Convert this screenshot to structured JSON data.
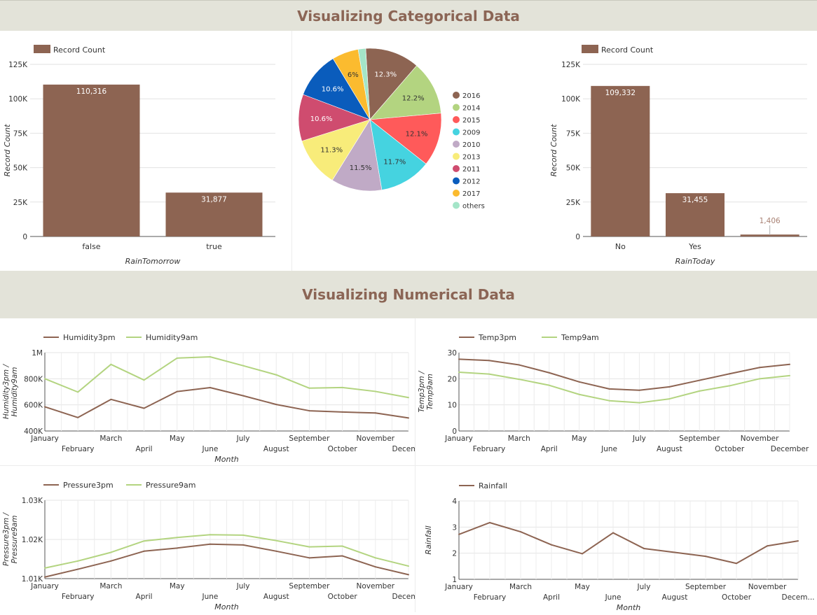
{
  "sections": {
    "categorical_title": "Visualizing Categorical Data",
    "numerical_title": "Visualizing Numerical Data"
  },
  "colors": {
    "brown": "#8d6452",
    "green": "#b3d480",
    "banner_bg": "#e3e3d9",
    "title": "#8b6555"
  },
  "chart_data": [
    {
      "id": "rain_tomorrow",
      "type": "bar",
      "legend": [
        "Record Count"
      ],
      "categories": [
        "false",
        "true"
      ],
      "values": [
        110316,
        31877
      ],
      "value_labels": [
        "110,316",
        "31,877"
      ],
      "xlabel": "RainTomorrow",
      "ylabel": "Record Count",
      "ylim": [
        0,
        125000
      ],
      "y_ticks": [
        0,
        25000,
        50000,
        75000,
        100000,
        125000
      ],
      "y_tick_labels": [
        "0",
        "25K",
        "50K",
        "75K",
        "100K",
        "125K"
      ],
      "grid": true,
      "legend_position": "top-left"
    },
    {
      "id": "year_pie",
      "type": "pie",
      "labels": [
        "2016",
        "2014",
        "2015",
        "2009",
        "2010",
        "2013",
        "2011",
        "2012",
        "2017",
        "others"
      ],
      "values": [
        12.3,
        12.2,
        12.1,
        11.7,
        11.5,
        11.3,
        10.6,
        10.6,
        6.0,
        1.7
      ],
      "slice_labels": [
        "12.3%",
        "12.2%",
        "12.1%",
        "11.7%",
        "11.5%",
        "11.3%",
        "10.6%",
        "10.6%",
        "6%",
        ""
      ],
      "colors": [
        "#8d6452",
        "#b3d480",
        "#ff5a5a",
        "#45d3e0",
        "#c0aac6",
        "#f8ec7a",
        "#cf4c6f",
        "#0a5cbc",
        "#fbbb2f",
        "#a4e5c8"
      ],
      "legend_position": "right"
    },
    {
      "id": "rain_today",
      "type": "bar",
      "legend": [
        "Record Count"
      ],
      "categories": [
        "No",
        "Yes",
        ""
      ],
      "values": [
        109332,
        31455,
        1406
      ],
      "value_labels": [
        "109,332",
        "31,455",
        "1,406"
      ],
      "xlabel": "RainToday",
      "ylabel": "Record Count",
      "ylim": [
        0,
        125000
      ],
      "y_ticks": [
        0,
        25000,
        50000,
        75000,
        100000,
        125000
      ],
      "y_tick_labels": [
        "0",
        "25K",
        "50K",
        "75K",
        "100K",
        "125K"
      ],
      "grid": true,
      "legend_position": "top-left"
    },
    {
      "id": "humidity",
      "type": "line",
      "x": [
        "January",
        "February",
        "March",
        "April",
        "May",
        "June",
        "July",
        "August",
        "September",
        "October",
        "November",
        "Decem..."
      ],
      "series": [
        {
          "name": "Humidity3pm",
          "color": "#8d6452",
          "values": [
            585000,
            503000,
            642000,
            574000,
            702000,
            732000,
            670000,
            603000,
            555000,
            545000,
            538000,
            500000
          ]
        },
        {
          "name": "Humidity9am",
          "color": "#b3d480",
          "values": [
            800000,
            698000,
            910000,
            790000,
            958000,
            968000,
            900000,
            830000,
            728000,
            733000,
            703000,
            656000
          ]
        }
      ],
      "xlabel": "Month",
      "ylabel": "Humidity3pm / Humidity9am",
      "ylim": [
        400000,
        1000000
      ],
      "y_ticks": [
        400000,
        600000,
        800000,
        1000000
      ],
      "y_tick_labels": [
        "400K",
        "600K",
        "800K",
        "1M"
      ],
      "grid": true,
      "legend_position": "top-left"
    },
    {
      "id": "temperature",
      "type": "line",
      "x": [
        "January",
        "February",
        "March",
        "April",
        "May",
        "June",
        "July",
        "August",
        "September",
        "October",
        "November",
        "December"
      ],
      "series": [
        {
          "name": "Temp3pm",
          "color": "#8d6452",
          "values": [
            27.5,
            27.0,
            25.3,
            22.3,
            18.8,
            16.1,
            15.6,
            16.9,
            19.4,
            21.9,
            24.3,
            25.5
          ]
        },
        {
          "name": "Temp9am",
          "color": "#b3d480",
          "values": [
            22.5,
            21.8,
            19.8,
            17.5,
            14.0,
            11.6,
            10.8,
            12.3,
            15.3,
            17.3,
            20.0,
            21.2
          ]
        }
      ],
      "xlabel": "",
      "ylabel": "Temp3pm / Temp9am",
      "ylim": [
        0,
        30
      ],
      "y_ticks": [
        0,
        10,
        20,
        30
      ],
      "y_tick_labels": [
        "0",
        "10",
        "20",
        "30"
      ],
      "grid": true,
      "legend_position": "top-left"
    },
    {
      "id": "pressure",
      "type": "line",
      "x": [
        "January",
        "February",
        "March",
        "April",
        "May",
        "June",
        "July",
        "August",
        "September",
        "October",
        "November",
        "Decem..."
      ],
      "series": [
        {
          "name": "Pressure3pm",
          "color": "#8d6452",
          "values": [
            1010.4,
            1012.4,
            1014.5,
            1017.0,
            1017.8,
            1018.8,
            1018.6,
            1017.0,
            1015.3,
            1015.8,
            1013.0,
            1011.0
          ]
        },
        {
          "name": "Pressure9am",
          "color": "#b3d480",
          "values": [
            1012.7,
            1014.5,
            1016.7,
            1019.6,
            1020.5,
            1021.2,
            1021.1,
            1019.7,
            1018.1,
            1018.3,
            1015.3,
            1013.2
          ]
        }
      ],
      "xlabel": "Month",
      "ylabel": "Pressure3pm / Pressure9am",
      "ylim": [
        1010,
        1030
      ],
      "y_ticks": [
        1010,
        1020,
        1030
      ],
      "y_tick_labels": [
        "1.01K",
        "1.02K",
        "1.03K"
      ],
      "grid": true,
      "legend_position": "top-left"
    },
    {
      "id": "rainfall",
      "type": "line",
      "x": [
        "January",
        "February",
        "March",
        "April",
        "May",
        "June",
        "July",
        "August",
        "September",
        "October",
        "November",
        "Decem..."
      ],
      "series": [
        {
          "name": "Rainfall",
          "color": "#8d6452",
          "values": [
            2.72,
            3.17,
            2.82,
            2.32,
            1.98,
            2.78,
            2.18,
            2.03,
            1.88,
            1.61,
            2.28,
            2.47
          ]
        }
      ],
      "xlabel": "Month",
      "ylabel": "Rainfall",
      "ylim": [
        1,
        4
      ],
      "y_ticks": [
        1,
        2,
        3,
        4
      ],
      "y_tick_labels": [
        "1",
        "2",
        "3",
        "4"
      ],
      "grid": true,
      "legend_position": "top-left"
    }
  ]
}
